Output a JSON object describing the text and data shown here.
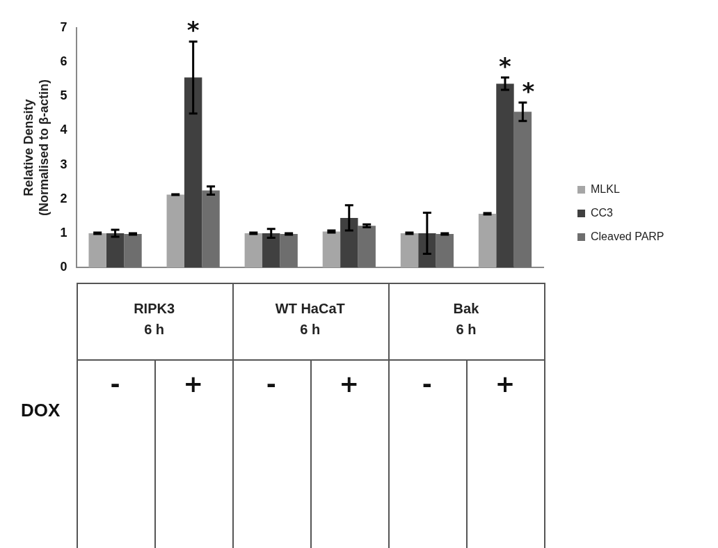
{
  "chart_data": {
    "type": "bar",
    "ylabel": "Relative Density\n(Normalised to β-actin)",
    "xlabel": "DOX",
    "categories": [
      "-",
      "+",
      "-",
      "+",
      "-",
      "+"
    ],
    "annotations": [
      "RIPK3\n6 h",
      "WT HaCaT\n6 h",
      "Bak\n6 h"
    ],
    "series": [
      {
        "name": "MLKL",
        "color": "#a6a6a6",
        "values": [
          1.0,
          2.13,
          1.0,
          1.05,
          1.0,
          1.57
        ],
        "errors": [
          0.02,
          0.01,
          0.02,
          0.03,
          0.02,
          0.02
        ]
      },
      {
        "name": "CC3",
        "color": "#404040",
        "values": [
          1.0,
          5.55,
          1.0,
          1.45,
          1.0,
          5.37
        ],
        "errors": [
          0.1,
          1.05,
          0.13,
          0.37,
          0.6,
          0.18
        ],
        "value_labels": [
          null,
          "*",
          null,
          null,
          null,
          "*"
        ]
      },
      {
        "name": "Cleaved PARP",
        "color": "#6e6e6e",
        "values": [
          0.98,
          2.25,
          0.98,
          1.22,
          0.98,
          4.55
        ],
        "errors": [
          0.02,
          0.12,
          0.02,
          0.04,
          0.02,
          0.27
        ],
        "value_labels": [
          null,
          null,
          null,
          null,
          null,
          "*"
        ]
      }
    ],
    "ylim": [
      0,
      7
    ],
    "yticks": [
      0,
      1,
      2,
      3,
      4,
      5,
      6,
      7
    ],
    "grid": false,
    "legend": "right"
  }
}
